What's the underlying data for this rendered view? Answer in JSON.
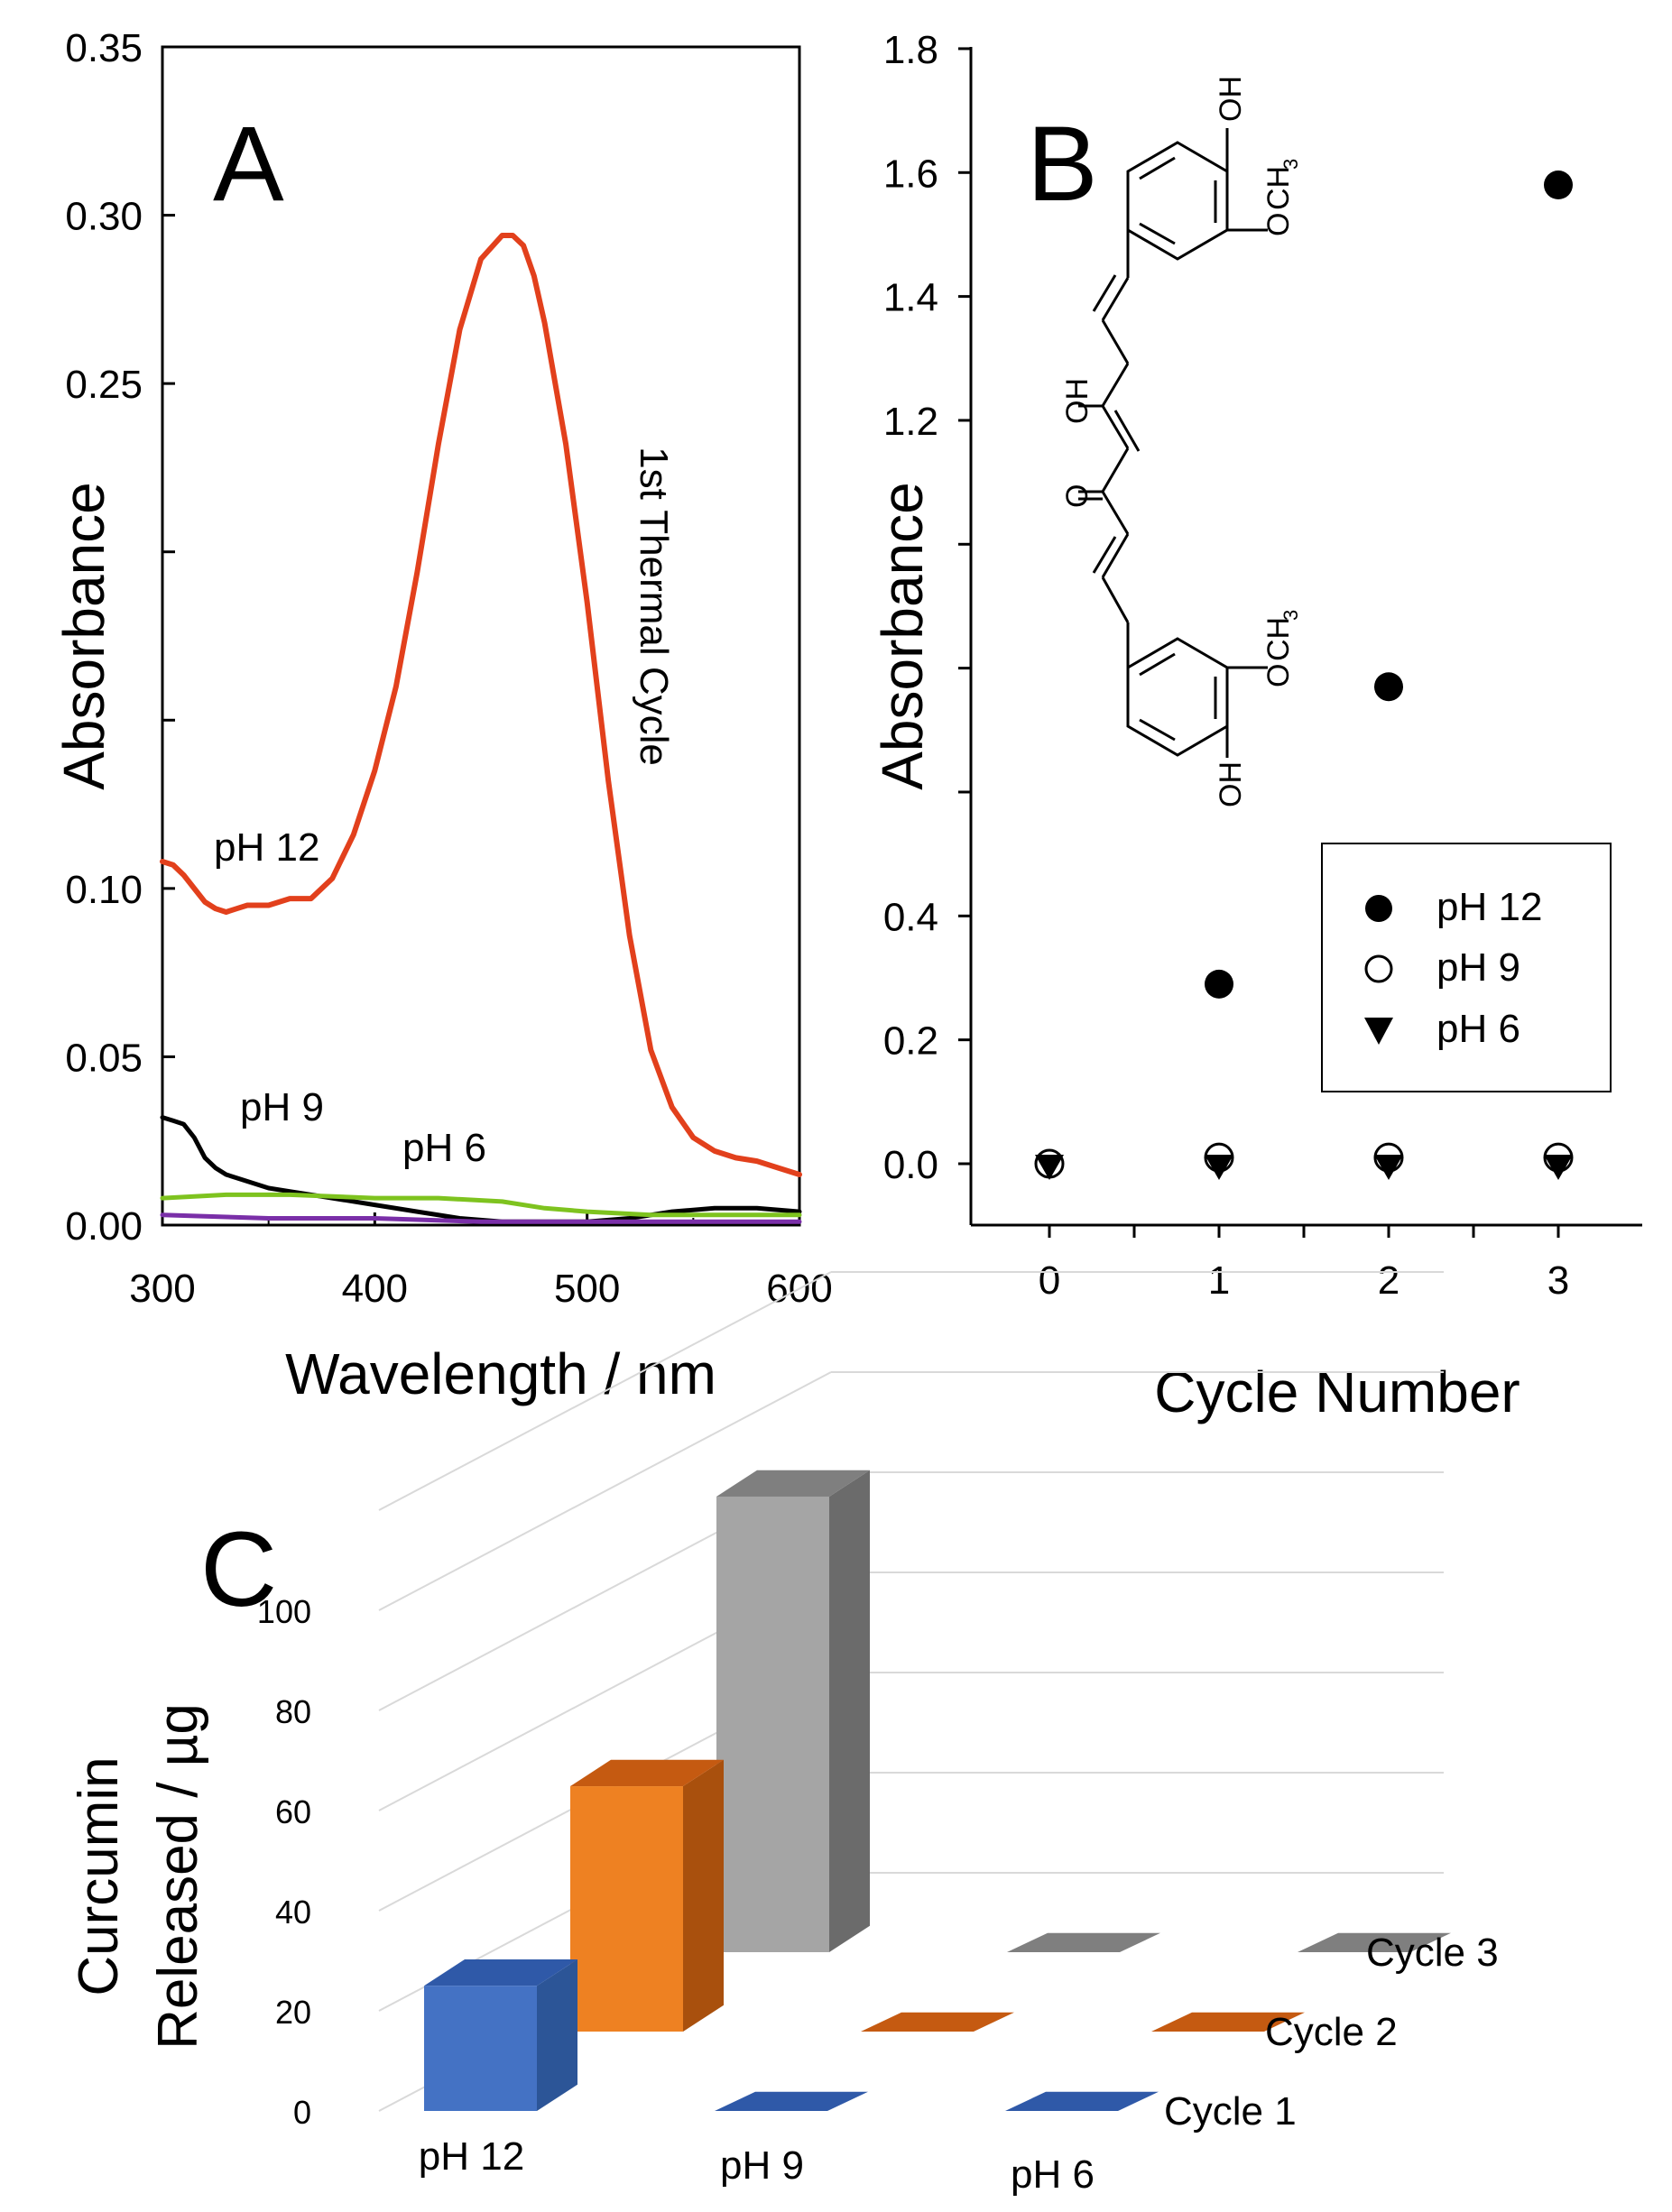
{
  "colors": {
    "ph12": "#e2401c",
    "ph9": "#000000",
    "ph6": "#7ec31f",
    "baseline": "#7a2fa8",
    "struct_hetero": "#e2401c",
    "c1_front": "#4472c4",
    "c1_side": "#2c5597",
    "c1_top": "#2f59a8",
    "c2_front": "#ee8122",
    "c2_side": "#a9500d",
    "c2_top": "#c55a11",
    "c3_front": "#a5a5a5",
    "c3_side": "#6b6b6b",
    "c3_top": "#7f7f7f"
  },
  "chart_data": [
    {
      "panel": "A",
      "type": "line",
      "panel_label": "A",
      "xlabel": "Wavelength / nm",
      "ylabel": "Absorbance",
      "xlim": [
        300,
        600
      ],
      "ylim": [
        0,
        0.35
      ],
      "x_ticks": [
        "300",
        "400",
        "500",
        "600"
      ],
      "y_ticks": [
        {
          "value": 0.35,
          "label": "0.35"
        },
        {
          "value": 0.3,
          "label": "0.30"
        },
        {
          "value": 0.25,
          "label": "0.25"
        },
        {
          "value": 0.2,
          "label": ""
        },
        {
          "value": 0.15,
          "label": ""
        },
        {
          "value": 0.1,
          "label": "0.10"
        },
        {
          "value": 0.05,
          "label": "0.05"
        },
        {
          "value": 0.0,
          "label": "0.00"
        }
      ],
      "annotation": "1st Thermal Cycle",
      "series": [
        {
          "name": "pH 12",
          "label": "pH 12",
          "color": "ph12",
          "x": [
            300,
            305,
            310,
            315,
            320,
            325,
            330,
            335,
            340,
            350,
            360,
            370,
            380,
            390,
            400,
            410,
            420,
            430,
            440,
            450,
            460,
            465,
            470,
            475,
            480,
            490,
            500,
            510,
            520,
            530,
            540,
            550,
            560,
            570,
            580,
            590,
            600
          ],
          "y": [
            0.108,
            0.107,
            0.104,
            0.1,
            0.096,
            0.094,
            0.093,
            0.094,
            0.095,
            0.095,
            0.097,
            0.097,
            0.103,
            0.116,
            0.135,
            0.16,
            0.194,
            0.232,
            0.266,
            0.287,
            0.294,
            0.294,
            0.291,
            0.282,
            0.268,
            0.232,
            0.185,
            0.132,
            0.086,
            0.052,
            0.035,
            0.026,
            0.022,
            0.02,
            0.019,
            0.017,
            0.015
          ]
        },
        {
          "name": "pH 9",
          "label": "pH 9",
          "color": "ph9",
          "x": [
            300,
            305,
            310,
            315,
            320,
            325,
            330,
            340,
            350,
            360,
            380,
            400,
            420,
            440,
            460,
            480,
            500,
            520,
            540,
            560,
            580,
            600
          ],
          "y": [
            0.032,
            0.031,
            0.03,
            0.026,
            0.02,
            0.017,
            0.015,
            0.013,
            0.011,
            0.01,
            0.008,
            0.006,
            0.004,
            0.002,
            0.001,
            0.001,
            0.001,
            0.002,
            0.004,
            0.005,
            0.005,
            0.004
          ]
        },
        {
          "name": "pH 6",
          "label": "pH 6",
          "color": "ph6",
          "x": [
            300,
            330,
            360,
            400,
            430,
            460,
            480,
            500,
            530,
            560,
            600
          ],
          "y": [
            0.008,
            0.009,
            0.009,
            0.008,
            0.008,
            0.007,
            0.005,
            0.004,
            0.003,
            0.003,
            0.003
          ]
        },
        {
          "name": "baseline",
          "label": "",
          "color": "baseline",
          "x": [
            300,
            350,
            400,
            450,
            500,
            550,
            600
          ],
          "y": [
            0.003,
            0.002,
            0.002,
            0.001,
            0.001,
            0.001,
            0.001
          ]
        }
      ]
    },
    {
      "panel": "B",
      "type": "scatter",
      "panel_label": "B",
      "xlabel": "Cycle Number",
      "ylabel": "Absorbance",
      "xlim": [
        -0.45,
        3.5
      ],
      "ylim": [
        -0.1,
        1.8
      ],
      "x_ticks": [
        "0",
        "1",
        "2",
        "3"
      ],
      "y_ticks": [
        {
          "value": 1.8,
          "label": "1.8"
        },
        {
          "value": 1.6,
          "label": "1.6"
        },
        {
          "value": 1.4,
          "label": "1.4"
        },
        {
          "value": 1.2,
          "label": "1.2"
        },
        {
          "value": 1.0,
          "label": ""
        },
        {
          "value": 0.8,
          "label": ""
        },
        {
          "value": 0.6,
          "label": ""
        },
        {
          "value": 0.4,
          "label": "0.4"
        },
        {
          "value": 0.2,
          "label": "0.2"
        },
        {
          "value": 0.0,
          "label": "0.0"
        }
      ],
      "series": [
        {
          "name": "pH 12",
          "marker": "filled-circle",
          "x": [
            0,
            1,
            2,
            3
          ],
          "y": [
            0.0,
            0.29,
            0.77,
            1.58
          ]
        },
        {
          "name": "pH 9",
          "marker": "open-circle",
          "x": [
            0,
            1,
            2,
            3
          ],
          "y": [
            0.0,
            0.01,
            0.01,
            0.01
          ]
        },
        {
          "name": "pH 6",
          "marker": "filled-triangle-down",
          "x": [
            0,
            1,
            2,
            3
          ],
          "y": [
            0.0,
            0.0,
            0.0,
            0.0
          ]
        }
      ],
      "legend": [
        "pH 12",
        "pH 9",
        "pH 6"
      ],
      "legend_position": "lower-right",
      "inset_structure_labels": {
        "oh": "OH",
        "och": "OCH",
        "sub3": "3",
        "o": "O"
      }
    },
    {
      "panel": "C",
      "type": "bar",
      "subtype": "3d-grouped",
      "panel_label": "C",
      "ylabel_line1": "Curcumin",
      "ylabel_line2": "Released / µg",
      "ylim": [
        0,
        120
      ],
      "y_ticks": [
        {
          "value": 0,
          "label": "0"
        },
        {
          "value": 20,
          "label": "20"
        },
        {
          "value": 40,
          "label": "40"
        },
        {
          "value": 60,
          "label": "60"
        },
        {
          "value": 80,
          "label": "80"
        },
        {
          "value": 100,
          "label": "100"
        },
        {
          "value": 120,
          "label": ""
        }
      ],
      "categories": [
        "pH 12",
        "pH 9",
        "pH 6"
      ],
      "series": [
        {
          "name": "Cycle 1",
          "values": [
            25,
            0,
            0
          ]
        },
        {
          "name": "Cycle 2",
          "values": [
            49,
            0,
            0
          ]
        },
        {
          "name": "Cycle 3",
          "values": [
            91,
            0,
            0
          ]
        }
      ]
    }
  ]
}
